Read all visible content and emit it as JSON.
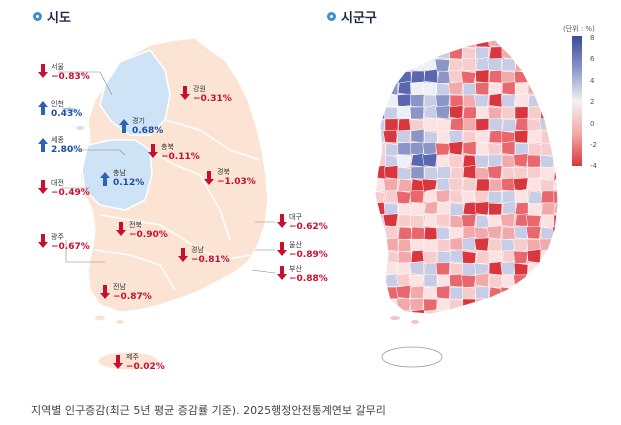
{
  "left_title": "시도",
  "right_title": "시군구",
  "caption": "지역별 인구증감(최근 5년 평균 증감률 기준). 2025행정안전통계연보 갈무리",
  "legend": {
    "unit": "(단위 : %)",
    "ticks": [
      "8",
      "6",
      "4",
      "2",
      "0",
      "-2",
      "-4"
    ],
    "colors": {
      "high": "#3b4b9a",
      "mid": "#f2f2f2",
      "low": "#d9363e"
    }
  },
  "regions": [
    {
      "name": "서울",
      "value": "−0.83%",
      "trend": "down"
    },
    {
      "name": "인천",
      "value": "0.43%",
      "trend": "up"
    },
    {
      "name": "세종",
      "value": "2.80%",
      "trend": "up"
    },
    {
      "name": "대전",
      "value": "−0.49%",
      "trend": "down"
    },
    {
      "name": "광주",
      "value": "−0.67%",
      "trend": "down"
    },
    {
      "name": "강원",
      "value": "−0.31%",
      "trend": "down"
    },
    {
      "name": "경기",
      "value": "0.68%",
      "trend": "up"
    },
    {
      "name": "충북",
      "value": "−0.11%",
      "trend": "down"
    },
    {
      "name": "충남",
      "value": "0.12%",
      "trend": "up"
    },
    {
      "name": "경북",
      "value": "−1.03%",
      "trend": "down"
    },
    {
      "name": "전북",
      "value": "−0.90%",
      "trend": "down"
    },
    {
      "name": "경남",
      "value": "−0.81%",
      "trend": "down"
    },
    {
      "name": "전남",
      "value": "−0.87%",
      "trend": "down"
    },
    {
      "name": "대구",
      "value": "−0.62%",
      "trend": "down"
    },
    {
      "name": "울산",
      "value": "−0.89%",
      "trend": "down"
    },
    {
      "name": "부산",
      "value": "−0.88%",
      "trend": "down"
    },
    {
      "name": "제주",
      "value": "−0.02%",
      "trend": "down"
    }
  ],
  "colors": {
    "decline": "#c8102e",
    "growth": "#2b63b5",
    "land": "#fbe4d4",
    "growth_land": "#cfe3f6"
  }
}
